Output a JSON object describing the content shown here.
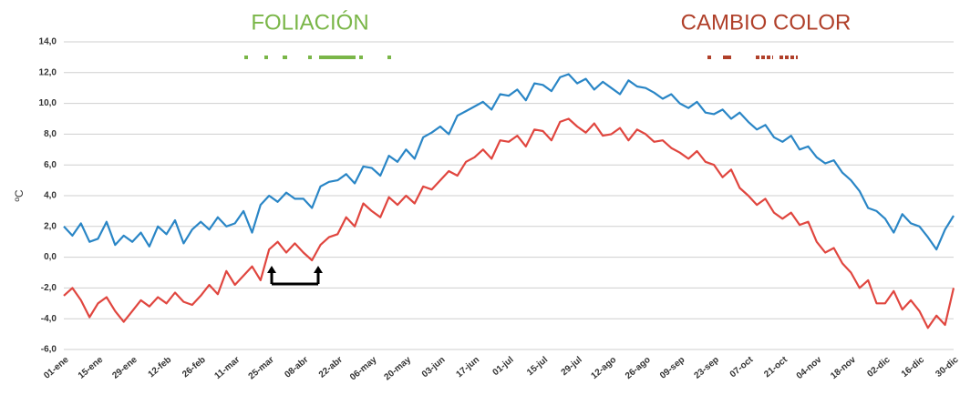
{
  "chart_data": {
    "type": "line",
    "y_label": "ºC",
    "annotations": [
      "FOLIACIÓN",
      "CAMBIO COLOR"
    ],
    "categories": [
      "01-ene",
      null,
      null,
      null,
      "15-ene",
      null,
      null,
      null,
      "29-ene",
      null,
      null,
      null,
      "12-feb",
      null,
      null,
      null,
      "26-feb",
      null,
      null,
      null,
      "11-mar",
      null,
      null,
      null,
      "25-mar",
      null,
      null,
      null,
      "08-abr",
      null,
      null,
      null,
      "22-abr",
      null,
      null,
      null,
      "06-may",
      null,
      null,
      null,
      "20-may",
      null,
      null,
      null,
      "03-jun",
      null,
      null,
      null,
      "17-jun",
      null,
      null,
      null,
      "01-jul",
      null,
      null,
      null,
      "15-jul",
      null,
      null,
      null,
      "29-jul",
      null,
      null,
      null,
      "12-ago",
      null,
      null,
      null,
      "26-ago",
      null,
      null,
      null,
      "09-sep",
      null,
      null,
      null,
      "23-sep",
      null,
      null,
      null,
      "07-oct",
      null,
      null,
      null,
      "21-oct",
      null,
      null,
      null,
      "04-nov",
      null,
      null,
      null,
      "18-nov",
      null,
      null,
      null,
      "02-dic",
      null,
      null,
      null,
      "16-dic",
      null,
      null,
      null,
      "30-dic"
    ],
    "series": [
      {
        "color": "#2a86c6",
        "values": [
          2.0,
          1.4,
          2.2,
          1.0,
          1.2,
          2.3,
          0.8,
          1.4,
          1.0,
          1.6,
          0.7,
          2.0,
          1.5,
          2.4,
          0.9,
          1.8,
          2.3,
          1.8,
          2.6,
          2.0,
          2.2,
          3.0,
          1.6,
          3.4,
          4.0,
          3.6,
          4.2,
          3.8,
          3.8,
          3.2,
          4.6,
          4.9,
          5.0,
          5.4,
          4.8,
          5.9,
          5.8,
          5.3,
          6.6,
          6.2,
          7.0,
          6.4,
          7.8,
          8.1,
          8.5,
          8.0,
          9.2,
          9.5,
          9.8,
          10.1,
          9.6,
          10.6,
          10.5,
          10.9,
          10.2,
          11.3,
          11.2,
          10.8,
          11.7,
          11.9,
          11.3,
          11.6,
          10.9,
          11.4,
          11.0,
          10.6,
          11.5,
          11.1,
          11.0,
          10.7,
          10.3,
          10.6,
          10.0,
          9.7,
          10.1,
          9.4,
          9.3,
          9.6,
          9.0,
          9.4,
          8.8,
          8.3,
          8.6,
          7.8,
          7.5,
          7.9,
          7.0,
          7.2,
          6.5,
          6.1,
          6.3,
          5.5,
          5.0,
          4.3,
          3.2,
          3.0,
          2.5,
          1.6,
          2.8,
          2.2,
          2.0,
          1.3,
          0.5,
          1.8,
          2.7
        ]
      },
      {
        "color": "#e0463f",
        "values": [
          -2.5,
          -2.0,
          -2.8,
          -3.9,
          -3.0,
          -2.6,
          -3.5,
          -4.2,
          -3.5,
          -2.8,
          -3.2,
          -2.6,
          -3.0,
          -2.3,
          -2.9,
          -3.1,
          -2.5,
          -1.8,
          -2.4,
          -0.9,
          -1.8,
          -1.2,
          -0.6,
          -1.5,
          0.5,
          1.0,
          0.3,
          0.9,
          0.3,
          -0.2,
          0.8,
          1.3,
          1.5,
          2.6,
          2.0,
          3.5,
          3.0,
          2.6,
          3.9,
          3.4,
          4.0,
          3.5,
          4.6,
          4.4,
          5.0,
          5.6,
          5.3,
          6.2,
          6.5,
          7.0,
          6.4,
          7.6,
          7.5,
          7.9,
          7.2,
          8.3,
          8.2,
          7.6,
          8.8,
          9.0,
          8.5,
          8.1,
          8.7,
          7.9,
          8.0,
          8.4,
          7.6,
          8.3,
          8.0,
          7.5,
          7.6,
          7.1,
          6.8,
          6.4,
          6.9,
          6.2,
          6.0,
          5.2,
          5.7,
          4.5,
          4.0,
          3.4,
          3.8,
          2.9,
          2.5,
          2.9,
          2.1,
          2.3,
          1.0,
          0.3,
          0.6,
          -0.4,
          -1.0,
          -2.0,
          -1.5,
          -3.0,
          -3.0,
          -2.2,
          -3.4,
          -2.8,
          -3.5,
          -4.6,
          -3.8,
          -4.4,
          -2.0
        ]
      }
    ],
    "ylim": [
      -6,
      14
    ],
    "yticks": [
      {
        "value": -6,
        "label": "-6,0"
      },
      {
        "value": -4,
        "label": "-4,0"
      },
      {
        "value": -2,
        "label": "-2,0"
      },
      {
        "value": 0,
        "label": "0,0"
      },
      {
        "value": 2,
        "label": "2,0"
      },
      {
        "value": 4,
        "label": "4,0"
      },
      {
        "value": 6,
        "label": "6,0"
      },
      {
        "value": 8,
        "label": "8,0"
      },
      {
        "value": 10,
        "label": "10,0"
      },
      {
        "value": 12,
        "label": "12,0"
      },
      {
        "value": 14,
        "label": "14,0"
      }
    ],
    "grid": true
  }
}
